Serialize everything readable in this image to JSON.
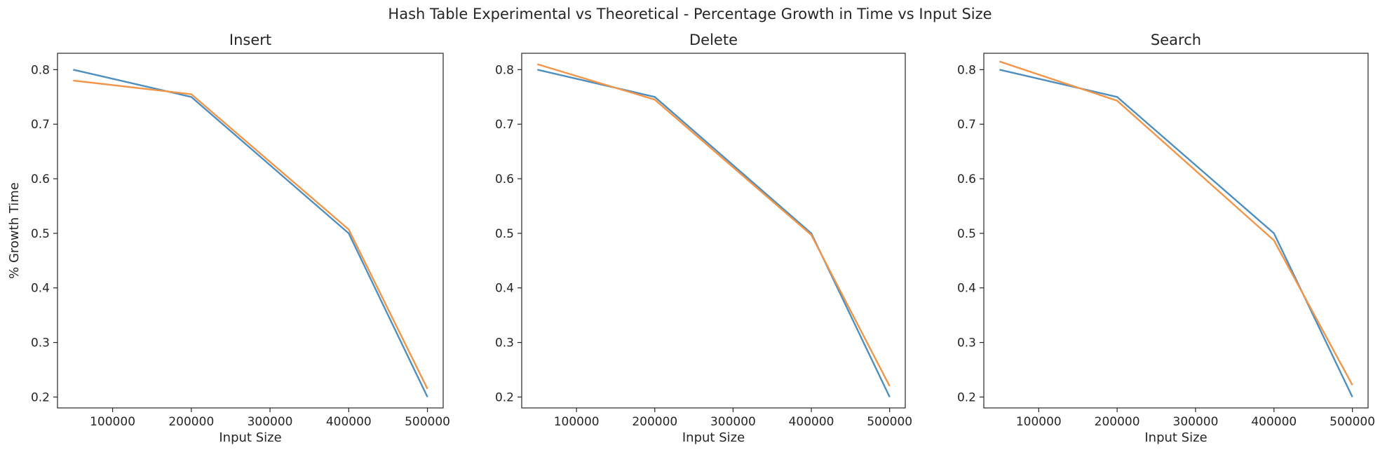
{
  "figure": {
    "title": "Hash Table Experimental vs Theoretical - Percentage Growth in Time vs Input Size"
  },
  "chart_data": [
    {
      "type": "line",
      "title": "Insert",
      "xlabel": "Input Size",
      "ylabel": "% Growth Time",
      "xlim": [
        30000,
        520000
      ],
      "ylim": [
        0.18,
        0.83
      ],
      "xticks": [
        100000,
        200000,
        300000,
        400000,
        500000
      ],
      "yticks": [
        0.2,
        0.3,
        0.4,
        0.5,
        0.6,
        0.7,
        0.8
      ],
      "grid": false,
      "series": [
        {
          "color": "#4f8fc0",
          "x": [
            50000,
            200000,
            400000,
            500000
          ],
          "y": [
            0.8,
            0.75,
            0.5,
            0.2
          ]
        },
        {
          "color": "#f29548",
          "x": [
            50000,
            200000,
            400000,
            500000
          ],
          "y": [
            0.78,
            0.755,
            0.507,
            0.215
          ]
        }
      ]
    },
    {
      "type": "line",
      "title": "Delete",
      "xlabel": "Input Size",
      "ylabel": "",
      "xlim": [
        30000,
        520000
      ],
      "ylim": [
        0.18,
        0.83
      ],
      "xticks": [
        100000,
        200000,
        300000,
        400000,
        500000
      ],
      "yticks": [
        0.2,
        0.3,
        0.4,
        0.5,
        0.6,
        0.7,
        0.8
      ],
      "grid": false,
      "series": [
        {
          "color": "#4f8fc0",
          "x": [
            50000,
            200000,
            400000,
            500000
          ],
          "y": [
            0.8,
            0.75,
            0.5,
            0.2
          ]
        },
        {
          "color": "#f29548",
          "x": [
            50000,
            200000,
            400000,
            500000
          ],
          "y": [
            0.81,
            0.745,
            0.497,
            0.22
          ]
        }
      ]
    },
    {
      "type": "line",
      "title": "Search",
      "xlabel": "Input Size",
      "ylabel": "",
      "xlim": [
        30000,
        520000
      ],
      "ylim": [
        0.18,
        0.83
      ],
      "xticks": [
        100000,
        200000,
        300000,
        400000,
        500000
      ],
      "yticks": [
        0.2,
        0.3,
        0.4,
        0.5,
        0.6,
        0.7,
        0.8
      ],
      "grid": false,
      "series": [
        {
          "color": "#4f8fc0",
          "x": [
            50000,
            200000,
            400000,
            500000
          ],
          "y": [
            0.8,
            0.75,
            0.5,
            0.2
          ]
        },
        {
          "color": "#f29548",
          "x": [
            50000,
            200000,
            400000,
            500000
          ],
          "y": [
            0.815,
            0.743,
            0.487,
            0.222
          ]
        }
      ]
    }
  ]
}
